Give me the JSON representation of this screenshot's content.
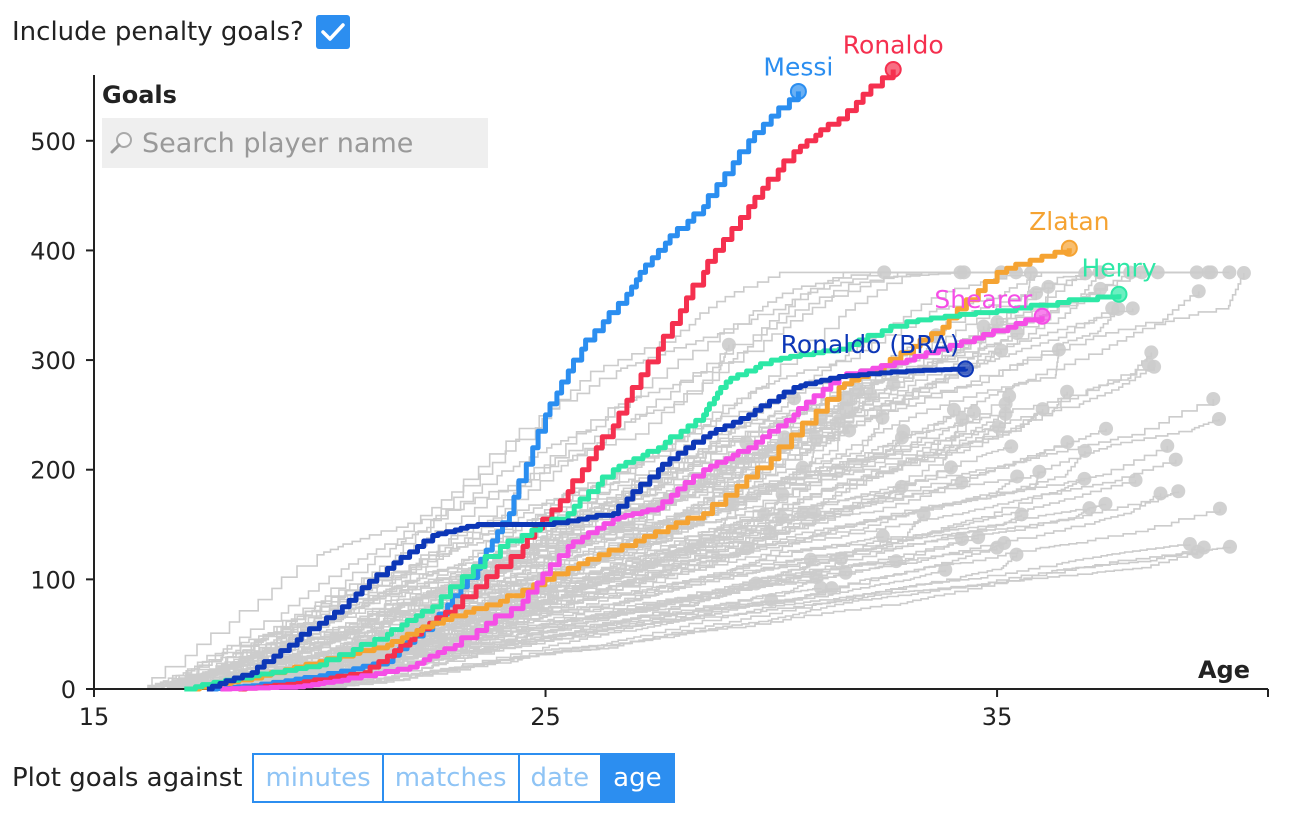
{
  "controls": {
    "penalty_label": "Include penalty goals?",
    "penalty_checked": true,
    "search_placeholder": "Search player name",
    "plot_against_label": "Plot goals against",
    "plot_options": [
      "minutes",
      "matches",
      "date",
      "age"
    ],
    "plot_selected": "age"
  },
  "colors": {
    "accent": "#2c8ef0",
    "background_lines": "#cccccc",
    "Messi": "#2b8ef0",
    "Ronaldo": "#f5304f",
    "Zlatan": "#f5a332",
    "Henry": "#2de8a6",
    "Shearer": "#f54ee6",
    "Ronaldo (BRA)": "#0d37b7"
  },
  "chart_data": {
    "type": "line",
    "xlabel": "Age",
    "ylabel": "Goals",
    "xlim": [
      15,
      41
    ],
    "ylim": [
      0,
      560
    ],
    "xticks": [
      15,
      25,
      35
    ],
    "yticks": [
      0,
      100,
      200,
      300,
      400,
      500
    ],
    "series": [
      {
        "name": "Messi",
        "points": [
          [
            17.6,
            0
          ],
          [
            18.5,
            3
          ],
          [
            20.0,
            12
          ],
          [
            21.5,
            25
          ],
          [
            22.5,
            60
          ],
          [
            23.5,
            110
          ],
          [
            24.2,
            160
          ],
          [
            25.0,
            250
          ],
          [
            25.8,
            310
          ],
          [
            26.8,
            360
          ],
          [
            27.5,
            400
          ],
          [
            28.5,
            440
          ],
          [
            29.5,
            500
          ],
          [
            30.6,
            545
          ]
        ]
      },
      {
        "name": "Ronaldo",
        "points": [
          [
            18.2,
            0
          ],
          [
            19.5,
            5
          ],
          [
            21.0,
            15
          ],
          [
            22.0,
            45
          ],
          [
            23.0,
            75
          ],
          [
            24.5,
            130
          ],
          [
            25.5,
            180
          ],
          [
            26.5,
            240
          ],
          [
            27.5,
            310
          ],
          [
            28.5,
            380
          ],
          [
            29.5,
            440
          ],
          [
            30.5,
            490
          ],
          [
            31.5,
            520
          ],
          [
            32.7,
            565
          ]
        ]
      },
      {
        "name": "Zlatan",
        "points": [
          [
            17.2,
            0
          ],
          [
            18.5,
            10
          ],
          [
            20.0,
            25
          ],
          [
            21.5,
            40
          ],
          [
            22.5,
            60
          ],
          [
            24.0,
            80
          ],
          [
            25.5,
            110
          ],
          [
            27.0,
            135
          ],
          [
            28.5,
            160
          ],
          [
            30.0,
            210
          ],
          [
            31.5,
            275
          ],
          [
            32.5,
            295
          ],
          [
            33.8,
            330
          ],
          [
            35.0,
            380
          ],
          [
            36.6,
            402
          ]
        ]
      },
      {
        "name": "Henry",
        "points": [
          [
            17.0,
            0
          ],
          [
            18.5,
            12
          ],
          [
            20.0,
            22
          ],
          [
            21.5,
            50
          ],
          [
            22.5,
            75
          ],
          [
            24.0,
            130
          ],
          [
            25.5,
            160
          ],
          [
            26.5,
            200
          ],
          [
            27.5,
            220
          ],
          [
            28.5,
            250
          ],
          [
            29.0,
            280
          ],
          [
            30.0,
            300
          ],
          [
            31.5,
            310
          ],
          [
            33.0,
            335
          ],
          [
            35.0,
            345
          ],
          [
            37.7,
            360
          ]
        ]
      },
      {
        "name": "Shearer",
        "points": [
          [
            17.8,
            0
          ],
          [
            19.5,
            2
          ],
          [
            20.5,
            8
          ],
          [
            22.0,
            20
          ],
          [
            23.0,
            40
          ],
          [
            24.5,
            80
          ],
          [
            25.5,
            130
          ],
          [
            26.5,
            155
          ],
          [
            27.5,
            165
          ],
          [
            28.5,
            200
          ],
          [
            29.5,
            220
          ],
          [
            30.5,
            250
          ],
          [
            31.5,
            285
          ],
          [
            33.0,
            300
          ],
          [
            34.5,
            320
          ],
          [
            36.0,
            340
          ]
        ]
      },
      {
        "name": "Ronaldo (BRA)",
        "points": [
          [
            17.5,
            0
          ],
          [
            18.5,
            15
          ],
          [
            19.5,
            45
          ],
          [
            20.5,
            75
          ],
          [
            21.5,
            110
          ],
          [
            22.5,
            140
          ],
          [
            23.5,
            150
          ],
          [
            25.0,
            150
          ],
          [
            26.5,
            160
          ],
          [
            27.5,
            200
          ],
          [
            28.5,
            230
          ],
          [
            29.5,
            250
          ],
          [
            30.5,
            275
          ],
          [
            31.5,
            285
          ],
          [
            33.0,
            290
          ],
          [
            34.3,
            292
          ]
        ]
      }
    ]
  }
}
